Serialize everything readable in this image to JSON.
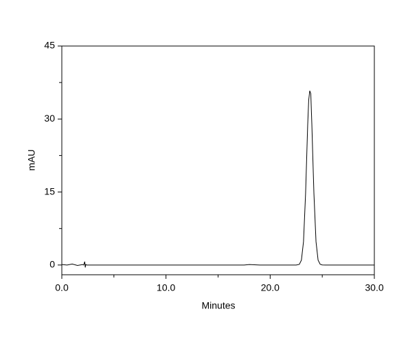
{
  "chart_data": {
    "type": "line",
    "x_label": "Minutes",
    "y_label": "mAU",
    "xlim": [
      0,
      30
    ],
    "ylim": [
      -2,
      45
    ],
    "xticks": [
      {
        "value": 0,
        "label": "0.0"
      },
      {
        "value": 10,
        "label": "10.0"
      },
      {
        "value": 20,
        "label": "20.0"
      },
      {
        "value": 30,
        "label": "30.0"
      }
    ],
    "xminorticks": [
      5,
      15,
      25
    ],
    "yticks": [
      0,
      15,
      30,
      45
    ],
    "yminorticks": [
      7.5,
      22.5,
      37.5
    ],
    "color": "#000000",
    "x": [
      0,
      0.5,
      1,
      1.5,
      2.0,
      2.1,
      2.2,
      2.25,
      2.3,
      2.4,
      3,
      5,
      10,
      15,
      17.5,
      18,
      19,
      20,
      21,
      22,
      22.5,
      22.8,
      23.0,
      23.2,
      23.4,
      23.5,
      23.6,
      23.7,
      23.8,
      23.85,
      23.9,
      24.0,
      24.1,
      24.2,
      24.4,
      24.6,
      24.8,
      25.0,
      25.3,
      26,
      28,
      30
    ],
    "values": [
      0.1,
      0.0,
      0.2,
      -0.1,
      0.1,
      0.0,
      0.7,
      -0.5,
      0.1,
      0.0,
      0.0,
      0.0,
      0.0,
      0.0,
      0.0,
      0.1,
      0.0,
      0.0,
      0.0,
      0.0,
      0.0,
      0.14,
      1.0,
      4.8,
      14.7,
      21.7,
      28.7,
      33.9,
      35.8,
      35.5,
      35.2,
      29.0,
      21.7,
      14.7,
      4.8,
      1.0,
      0.15,
      0.02,
      0.0,
      0.0,
      0.0,
      0.0
    ]
  }
}
